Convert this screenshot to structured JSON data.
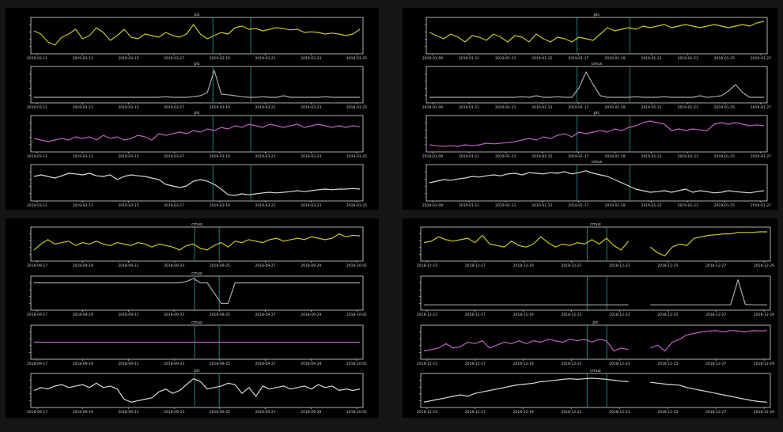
{
  "colors": {
    "page": "#151515",
    "panel": "#000000",
    "axis": "#d8d8d8",
    "text": "#cfcfcf",
    "marker": "#2a8a8a",
    "yellow": "#c8c81e",
    "gray": "#a8a8a8",
    "magenta": "#c060c0",
    "white": "#d8d8d8"
  },
  "chart_data": [
    {
      "panel": 1,
      "type": "line",
      "x_ticks": [
        "2019-03-11",
        "2019-03-13",
        "2019-03-15",
        "2019-03-17",
        "2019-03-19",
        "2019-03-21",
        "2019-03-23",
        "2019-03-25"
      ],
      "markers": [
        0.548,
        0.662
      ],
      "subplots": [
        {
          "title": "pic",
          "color": "yellow",
          "values": [
            0.65,
            0.55,
            0.3,
            0.2,
            0.45,
            0.55,
            0.7,
            0.4,
            0.5,
            0.75,
            0.6,
            0.35,
            0.5,
            0.7,
            0.45,
            0.4,
            0.55,
            0.5,
            0.45,
            0.6,
            0.5,
            0.45,
            0.55,
            0.85,
            0.55,
            0.4,
            0.5,
            0.6,
            0.55,
            0.75,
            0.8,
            0.7,
            0.72,
            0.65,
            0.7,
            0.75,
            0.72,
            0.68,
            0.7,
            0.6,
            0.62,
            0.6,
            0.55,
            0.58,
            0.55,
            0.5,
            0.55,
            0.7
          ]
        },
        {
          "title": "pic",
          "color": "gray",
          "values": [
            0.1,
            0.1,
            0.1,
            0.1,
            0.1,
            0.1,
            0.1,
            0.1,
            0.1,
            0.1,
            0.1,
            0.1,
            0.1,
            0.1,
            0.1,
            0.1,
            0.1,
            0.1,
            0.1,
            0.12,
            0.1,
            0.1,
            0.1,
            0.12,
            0.15,
            0.25,
            0.95,
            0.2,
            0.18,
            0.15,
            0.12,
            0.1,
            0.1,
            0.12,
            0.1,
            0.1,
            0.15,
            0.1,
            0.1,
            0.1,
            0.1,
            0.1,
            0.12,
            0.1,
            0.1,
            0.1,
            0.1,
            0.1
          ]
        },
        {
          "title": "pic",
          "color": "magenta",
          "values": [
            0.35,
            0.3,
            0.25,
            0.3,
            0.35,
            0.3,
            0.4,
            0.35,
            0.4,
            0.3,
            0.45,
            0.35,
            0.4,
            0.3,
            0.35,
            0.45,
            0.4,
            0.3,
            0.5,
            0.45,
            0.5,
            0.55,
            0.5,
            0.6,
            0.55,
            0.65,
            0.6,
            0.7,
            0.65,
            0.75,
            0.7,
            0.8,
            0.75,
            0.7,
            0.8,
            0.75,
            0.7,
            0.75,
            0.8,
            0.7,
            0.75,
            0.8,
            0.75,
            0.7,
            0.75,
            0.7,
            0.75,
            0.72
          ]
        },
        {
          "title": "",
          "color": "white",
          "values": [
            0.7,
            0.75,
            0.7,
            0.65,
            0.72,
            0.8,
            0.78,
            0.75,
            0.8,
            0.72,
            0.7,
            0.75,
            0.6,
            0.7,
            0.75,
            0.72,
            0.7,
            0.65,
            0.6,
            0.45,
            0.4,
            0.35,
            0.4,
            0.55,
            0.6,
            0.55,
            0.45,
            0.3,
            0.12,
            0.1,
            0.15,
            0.12,
            0.15,
            0.18,
            0.2,
            0.18,
            0.2,
            0.22,
            0.25,
            0.22,
            0.25,
            0.28,
            0.3,
            0.28,
            0.3,
            0.3,
            0.32,
            0.3
          ]
        }
      ]
    },
    {
      "panel": 2,
      "type": "line",
      "x_ticks": [
        "2019-01-09",
        "2019-01-11",
        "2019-01-13",
        "2019-01-15",
        "2019-01-17",
        "2019-01-19",
        "2019-01-21",
        "2019-01-23",
        "2019-01-25",
        "2019-01-27"
      ],
      "markers": [
        0.442,
        0.597
      ],
      "subplots": [
        {
          "title": "pic",
          "color": "yellow",
          "values": [
            0.6,
            0.5,
            0.4,
            0.55,
            0.45,
            0.3,
            0.5,
            0.45,
            0.35,
            0.55,
            0.45,
            0.3,
            0.5,
            0.45,
            0.3,
            0.55,
            0.4,
            0.3,
            0.45,
            0.4,
            0.3,
            0.45,
            0.4,
            0.35,
            0.55,
            0.75,
            0.65,
            0.7,
            0.75,
            0.7,
            0.8,
            0.75,
            0.8,
            0.85,
            0.75,
            0.8,
            0.85,
            0.8,
            0.75,
            0.8,
            0.85,
            0.8,
            0.75,
            0.8,
            0.85,
            0.8,
            0.9,
            0.95
          ]
        },
        {
          "title": "cmux",
          "color": "gray",
          "values": [
            0.1,
            0.1,
            0.1,
            0.1,
            0.1,
            0.1,
            0.1,
            0.1,
            0.1,
            0.1,
            0.1,
            0.1,
            0.1,
            0.12,
            0.1,
            0.15,
            0.1,
            0.1,
            0.12,
            0.1,
            0.1,
            0.4,
            0.9,
            0.5,
            0.15,
            0.1,
            0.1,
            0.1,
            0.1,
            0.12,
            0.1,
            0.1,
            0.1,
            0.12,
            0.1,
            0.1,
            0.1,
            0.1,
            0.15,
            0.1,
            0.12,
            0.15,
            0.3,
            0.5,
            0.25,
            0.1,
            0.1,
            0.1
          ]
        },
        {
          "title": "pic",
          "color": "magenta",
          "values": [
            0.15,
            0.12,
            0.1,
            0.12,
            0.1,
            0.15,
            0.12,
            0.15,
            0.2,
            0.18,
            0.2,
            0.22,
            0.25,
            0.3,
            0.35,
            0.3,
            0.4,
            0.35,
            0.45,
            0.5,
            0.4,
            0.55,
            0.5,
            0.55,
            0.6,
            0.55,
            0.65,
            0.6,
            0.7,
            0.75,
            0.85,
            0.9,
            0.85,
            0.8,
            0.6,
            0.65,
            0.6,
            0.65,
            0.62,
            0.6,
            0.8,
            0.85,
            0.8,
            0.85,
            0.8,
            0.75,
            0.78,
            0.75
          ]
        },
        {
          "title": "cmux",
          "color": "white",
          "values": [
            0.5,
            0.55,
            0.6,
            0.58,
            0.62,
            0.65,
            0.7,
            0.68,
            0.72,
            0.75,
            0.72,
            0.78,
            0.8,
            0.75,
            0.82,
            0.8,
            0.78,
            0.82,
            0.8,
            0.85,
            0.78,
            0.82,
            0.88,
            0.8,
            0.75,
            0.7,
            0.6,
            0.5,
            0.4,
            0.3,
            0.25,
            0.2,
            0.22,
            0.25,
            0.2,
            0.25,
            0.3,
            0.2,
            0.25,
            0.22,
            0.18,
            0.2,
            0.25,
            0.22,
            0.2,
            0.18,
            0.22,
            0.25
          ]
        }
      ]
    },
    {
      "panel": 3,
      "type": "line",
      "x_ticks": [
        "2018-09-17",
        "2018-09-19",
        "2018-09-21",
        "2018-09-23",
        "2018-09-25",
        "2018-09-27",
        "2018-09-29",
        "2018-10-01"
      ],
      "markers": [
        0.493,
        0.567
      ],
      "subplots": [
        {
          "title": "cmux",
          "color": "yellow",
          "values": [
            0.3,
            0.5,
            0.65,
            0.5,
            0.55,
            0.6,
            0.45,
            0.55,
            0.5,
            0.6,
            0.5,
            0.45,
            0.55,
            0.5,
            0.45,
            0.55,
            0.5,
            0.4,
            0.5,
            0.45,
            0.4,
            0.3,
            0.45,
            0.5,
            0.35,
            0.3,
            0.45,
            0.55,
            0.4,
            0.6,
            0.55,
            0.65,
            0.6,
            0.55,
            0.65,
            0.7,
            0.6,
            0.65,
            0.7,
            0.65,
            0.75,
            0.7,
            0.65,
            0.7,
            0.85,
            0.75,
            0.8,
            0.78
          ]
        },
        {
          "title": "cmux",
          "color": "gray",
          "values": [
            0.85,
            0.85,
            0.85,
            0.85,
            0.85,
            0.85,
            0.85,
            0.85,
            0.85,
            0.85,
            0.85,
            0.85,
            0.85,
            0.85,
            0.85,
            0.85,
            0.85,
            0.85,
            0.85,
            0.85,
            0.85,
            0.85,
            0.9,
            1.0,
            0.85,
            0.85,
            0.5,
            0.15,
            0.15,
            0.85,
            0.85,
            0.85,
            0.85,
            0.85,
            0.85,
            0.85,
            0.85,
            0.85,
            0.85,
            0.85,
            0.85,
            0.85,
            0.85,
            0.85,
            0.85,
            0.85,
            0.85,
            0.85
          ]
        },
        {
          "title": "cmux",
          "color": "magenta",
          "values": [
            0.5,
            0.5,
            0.5,
            0.5,
            0.5,
            0.5,
            0.5,
            0.5,
            0.5,
            0.5,
            0.5,
            0.5,
            0.5,
            0.5,
            0.5,
            0.5,
            0.5,
            0.5,
            0.5,
            0.5,
            0.5,
            0.5,
            0.5,
            0.5,
            0.5,
            0.5,
            0.5,
            0.5,
            0.5,
            0.5,
            0.5,
            0.5,
            0.5,
            0.5,
            0.5,
            0.5,
            0.5,
            0.5,
            0.5,
            0.5,
            0.5,
            0.5,
            0.5,
            0.5,
            0.5,
            0.5,
            0.5,
            0.5
          ]
        },
        {
          "title": "pic",
          "color": "white",
          "values": [
            0.5,
            0.6,
            0.55,
            0.65,
            0.7,
            0.6,
            0.65,
            0.7,
            0.6,
            0.75,
            0.6,
            0.65,
            0.55,
            0.2,
            0.1,
            0.15,
            0.2,
            0.25,
            0.45,
            0.55,
            0.4,
            0.5,
            0.7,
            0.9,
            0.8,
            0.55,
            0.6,
            0.65,
            0.75,
            0.7,
            0.4,
            0.6,
            0.3,
            0.65,
            0.55,
            0.6,
            0.65,
            0.55,
            0.6,
            0.65,
            0.55,
            0.7,
            0.6,
            0.65,
            0.5,
            0.55,
            0.5,
            0.55
          ]
        }
      ]
    },
    {
      "panel": 4,
      "type": "line",
      "x_ticks": [
        "2018-12-15",
        "2018-12-17",
        "2018-12-19",
        "2018-12-21",
        "2018-12-23",
        "2018-12-25",
        "2018-12-27",
        "2018-12-29"
      ],
      "markers": [
        0.476,
        0.532
      ],
      "gap": [
        0.583,
        0.619
      ],
      "subplots": [
        {
          "title": "cmux",
          "color": "yellow",
          "values": [
            0.55,
            0.6,
            0.75,
            0.65,
            0.6,
            0.65,
            0.7,
            0.55,
            0.8,
            0.5,
            0.45,
            0.4,
            0.6,
            0.45,
            0.4,
            0.5,
            0.75,
            0.55,
            0.4,
            0.5,
            0.45,
            0.55,
            0.5,
            0.65,
            0.5,
            0.7,
            0.45,
            0.3,
            0.6,
            null,
            null,
            0.4,
            0.2,
            0.1,
            0.4,
            0.5,
            0.45,
            0.7,
            0.75,
            0.8,
            0.82,
            0.85,
            0.85,
            0.9,
            0.9,
            0.9,
            0.92,
            0.92
          ]
        },
        {
          "title": "",
          "color": "gray",
          "values": [
            0.1,
            0.1,
            0.1,
            0.1,
            0.1,
            0.1,
            0.1,
            0.1,
            0.1,
            0.1,
            0.1,
            0.1,
            0.1,
            0.1,
            0.1,
            0.1,
            0.1,
            0.1,
            0.1,
            0.1,
            0.1,
            0.1,
            0.1,
            0.1,
            0.1,
            0.1,
            0.1,
            0.1,
            0.1,
            null,
            null,
            0.1,
            0.1,
            0.1,
            0.1,
            0.1,
            0.1,
            0.1,
            0.1,
            0.1,
            0.1,
            0.1,
            0.1,
            0.95,
            0.12,
            0.1,
            0.1,
            0.1
          ]
        },
        {
          "title": "pic",
          "color": "magenta",
          "values": [
            0.2,
            0.25,
            0.3,
            0.45,
            0.3,
            0.35,
            0.5,
            0.45,
            0.55,
            0.3,
            0.4,
            0.5,
            0.45,
            0.55,
            0.45,
            0.55,
            0.5,
            0.6,
            0.55,
            0.5,
            0.6,
            0.55,
            0.6,
            0.5,
            0.6,
            0.55,
            0.2,
            0.3,
            0.25,
            null,
            null,
            0.3,
            0.4,
            0.2,
            0.5,
            0.6,
            0.75,
            0.8,
            0.85,
            0.88,
            0.9,
            0.85,
            0.9,
            0.88,
            0.85,
            0.9,
            0.88,
            0.9
          ]
        },
        {
          "title": "cmux",
          "color": "white",
          "values": [
            0.1,
            0.15,
            0.2,
            0.25,
            0.3,
            0.35,
            0.3,
            0.4,
            0.45,
            0.5,
            0.55,
            0.6,
            0.65,
            0.7,
            0.72,
            0.75,
            0.8,
            0.82,
            0.85,
            0.88,
            0.9,
            0.88,
            0.9,
            0.92,
            0.9,
            0.88,
            0.85,
            0.82,
            0.8,
            null,
            null,
            0.78,
            0.75,
            0.72,
            0.7,
            0.68,
            0.6,
            0.55,
            0.5,
            0.45,
            0.4,
            0.35,
            0.3,
            0.25,
            0.2,
            0.15,
            0.12,
            0.1
          ]
        }
      ]
    }
  ]
}
